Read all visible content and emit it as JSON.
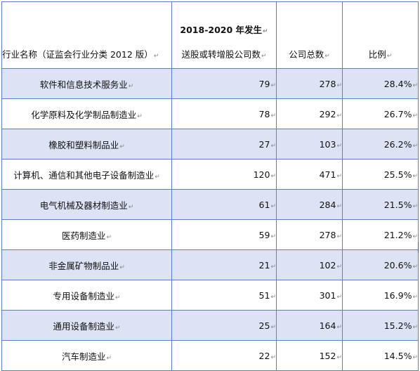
{
  "header": {
    "industry": "行业名称（证监会行业分类 2012 版）",
    "count_line1": "2018-2020 年发生",
    "count_line2": "送股或转增股公司数",
    "total": "公司总数",
    "ratio": "比例"
  },
  "paragraph_mark": "↵",
  "rows": [
    {
      "name": "软件和信息技术服务业",
      "count": "79",
      "total": "278",
      "ratio": "28.4%"
    },
    {
      "name": "化学原料及化学制品制造业",
      "count": "78",
      "total": "292",
      "ratio": "26.7%"
    },
    {
      "name": "橡胶和塑料制品业",
      "count": "27",
      "total": "103",
      "ratio": "26.2%"
    },
    {
      "name": "计算机、通信和其他电子设备制造业",
      "count": "120",
      "total": "471",
      "ratio": "25.5%"
    },
    {
      "name": "电气机械及器材制造业",
      "count": "61",
      "total": "284",
      "ratio": "21.5%"
    },
    {
      "name": "医药制造业",
      "count": "59",
      "total": "278",
      "ratio": "21.2%"
    },
    {
      "name": "非金属矿物制品业",
      "count": "21",
      "total": "102",
      "ratio": "20.6%"
    },
    {
      "name": "专用设备制造业",
      "count": "51",
      "total": "301",
      "ratio": "16.9%"
    },
    {
      "name": "通用设备制造业",
      "count": "25",
      "total": "164",
      "ratio": "15.2%"
    },
    {
      "name": "汽车制造业",
      "count": "22",
      "total": "152",
      "ratio": "14.5%"
    }
  ]
}
